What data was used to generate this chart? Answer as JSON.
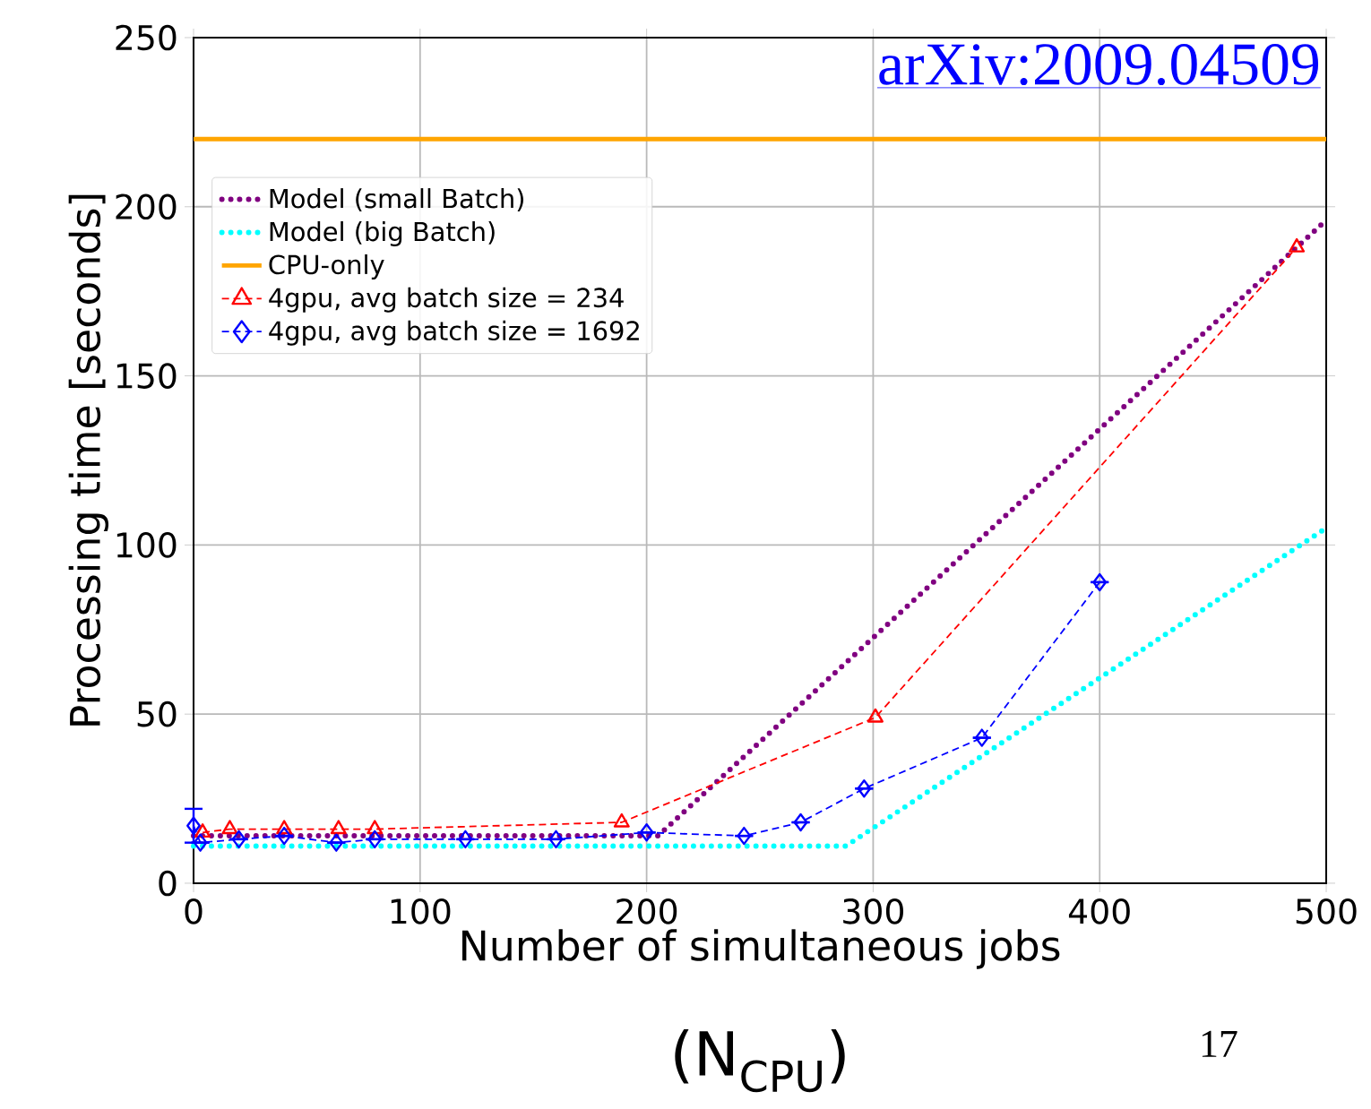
{
  "chart_data": {
    "type": "line",
    "xlabel": "Number of simultaneous jobs",
    "ylabel": "Processing time [seconds]",
    "annotations": [
      "arXiv:2009.04509",
      "(N$_{CPU}$)",
      "17"
    ],
    "xlim": [
      0,
      500
    ],
    "ylim": [
      0,
      250
    ],
    "xticks": [
      0,
      100,
      200,
      300,
      400,
      500
    ],
    "yticks": [
      0,
      50,
      100,
      150,
      200,
      250
    ],
    "grid": true,
    "legend": "top left",
    "series": [
      {
        "name": "Model (small Batch)",
        "color": "#800080",
        "line_style": "dotted",
        "marker": "none",
        "x": [
          0,
          205,
          500
        ],
        "values": [
          14,
          14,
          196
        ]
      },
      {
        "name": "Model (big Batch)",
        "color": "#00ffff",
        "line_style": "dotted",
        "marker": "none",
        "x": [
          0,
          288,
          500
        ],
        "values": [
          11,
          11,
          105
        ]
      },
      {
        "name": "CPU-only",
        "color": "#ffa500",
        "line_style": "solid",
        "marker": "none",
        "x": [
          0,
          500
        ],
        "values": [
          220,
          220
        ]
      },
      {
        "name": "4gpu, avg batch size = 234",
        "color": "#ff0000",
        "line_style": "dashed",
        "marker": "triangle",
        "x": [
          4,
          16,
          40,
          64,
          80,
          189,
          301,
          487
        ],
        "values": [
          15,
          16,
          16,
          16,
          16,
          18,
          49,
          188
        ]
      },
      {
        "name": "4gpu, avg batch size = 1692",
        "color": "#0000ff",
        "line_style": "dashed",
        "marker": "diamond",
        "x": [
          0,
          3,
          20,
          40,
          63,
          80,
          120,
          160,
          200,
          243,
          268,
          296,
          348,
          400
        ],
        "values": [
          17,
          12,
          13,
          14,
          12,
          13,
          13,
          13,
          15,
          14,
          18,
          28,
          43,
          89
        ],
        "errors": [
          5,
          null,
          null,
          null,
          null,
          null,
          null,
          null,
          null,
          null,
          null,
          null,
          null,
          null
        ]
      }
    ]
  }
}
